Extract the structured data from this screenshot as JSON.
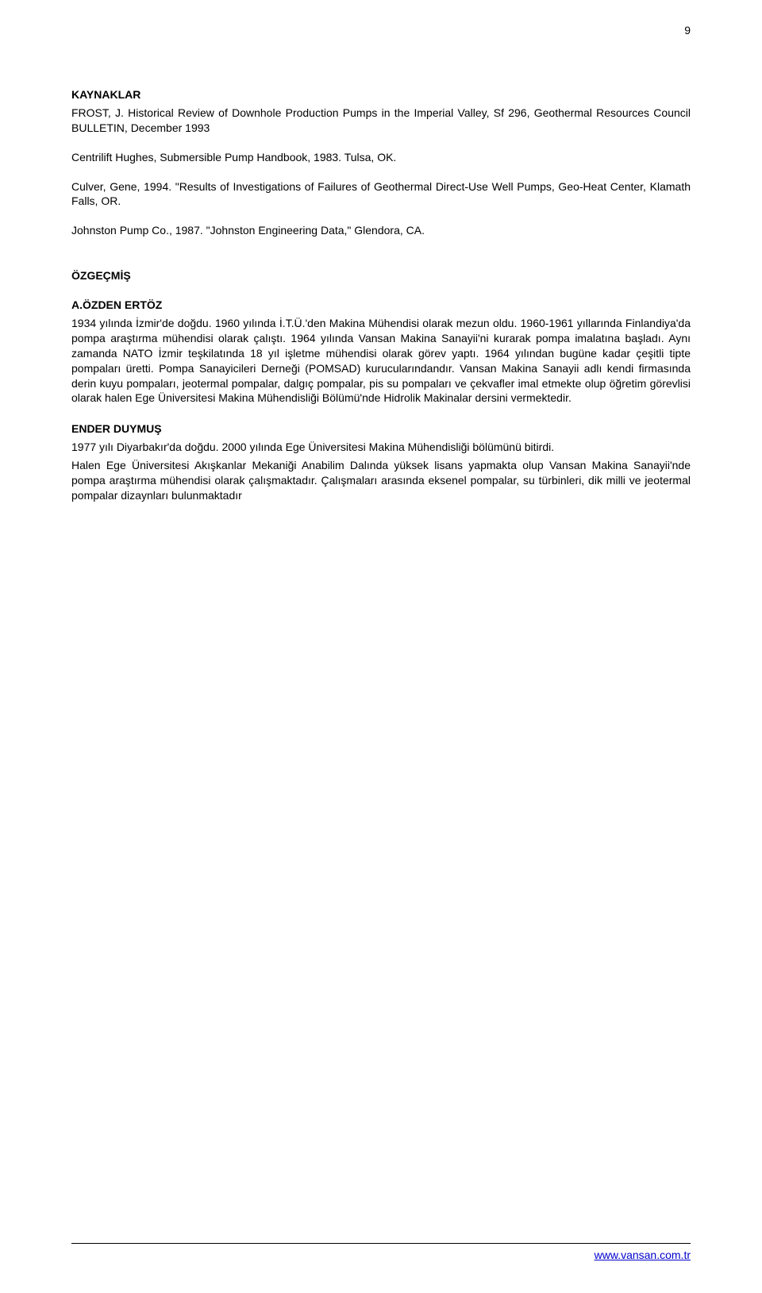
{
  "pageNumber": "9",
  "headings": {
    "references": "KAYNAKLAR",
    "cv": "ÖZGEÇMİŞ"
  },
  "refs": {
    "r1": "FROST, J. Historical Review of Downhole Production Pumps in the Imperial Valley, Sf 296, Geothermal Resources Council BULLETIN, December 1993",
    "r2": "Centrilift Hughes, Submersible Pump Handbook, 1983. Tulsa, OK.",
    "r3": "Culver, Gene, 1994. \"Results of Investigations of Failures of Geothermal Direct-Use Well Pumps, Geo-Heat Center, Klamath Falls, OR.",
    "r4": "Johnston Pump Co., 1987. \"Johnston Engineering Data,\" Glendora, CA."
  },
  "authors": {
    "a1": {
      "name": "A.ÖZDEN ERTÖZ",
      "bio": "1934 yılında İzmir'de doğdu. 1960 yılında İ.T.Ü.'den Makina Mühendisi olarak mezun oldu. 1960-1961 yıllarında Finlandiya'da pompa araştırma mühendisi olarak çalıştı. 1964 yılında Vansan Makina Sanayii'ni kurarak pompa imalatına başladı. Aynı zamanda NATO İzmir teşkilatında 18 yıl işletme mühendisi olarak görev yaptı. 1964 yılından bugüne kadar çeşitli tipte pompaları üretti. Pompa Sanayicileri Derneği (POMSAD) kurucularındandır. Vansan Makina Sanayii adlı kendi firmasında derin kuyu pompaları, jeotermal pompalar, dalgıç pompalar, pis su pompaları ve çekvafler imal etmekte olup öğretim görevlisi olarak halen Ege Üniversitesi Makina Mühendisliği Bölümü'nde Hidrolik Makinalar dersini vermektedir."
    },
    "a2": {
      "name": "ENDER DUYMUŞ",
      "bio_l1": "1977 yılı Diyarbakır'da doğdu. 2000 yılında Ege Üniversitesi Makina Mühendisliği bölümünü bitirdi.",
      "bio_l2": "Halen Ege Üniversitesi Akışkanlar Mekaniği Anabilim Dalında yüksek lisans yapmakta olup Vansan Makina Sanayii'nde pompa araştırma mühendisi olarak çalışmaktadır. Çalışmaları arasında eksenel pompalar, su türbinleri,  dik milli ve jeotermal pompalar dizaynları bulunmaktadır"
    }
  },
  "footer": {
    "url": "www.vansan.com.tr"
  }
}
